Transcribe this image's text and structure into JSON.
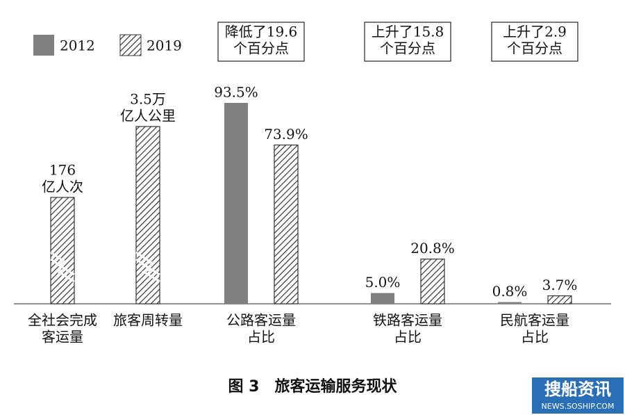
{
  "chart_data": {
    "type": "bar",
    "caption": "图 3　旅客运输服务现状",
    "categories": [
      [
        "全社会完成",
        "客运量"
      ],
      [
        "旅客周转量"
      ],
      [
        "公路客运量",
        "占比"
      ],
      [
        "铁路客运量",
        "占比"
      ],
      [
        "民航客运量",
        "占比"
      ]
    ],
    "series": [
      {
        "name": "2012",
        "color": "#7f7f7f",
        "hatch": false,
        "values": [
          null,
          null,
          93.5,
          5.0,
          0.8
        ],
        "value_labels": [
          null,
          null,
          [
            "93.5%"
          ],
          [
            "5.0%"
          ],
          [
            "0.8%"
          ]
        ]
      },
      {
        "name": "2019",
        "color": "#444444",
        "hatch": true,
        "values": [
          176,
          3.5,
          73.9,
          20.8,
          3.7
        ],
        "value_labels": [
          [
            "176",
            "亿人次"
          ],
          [
            "3.5万",
            "亿人公里"
          ],
          [
            "73.9%"
          ],
          [
            "20.8%"
          ],
          [
            "3.7%"
          ]
        ],
        "broken": [
          true,
          true,
          false,
          false,
          false
        ]
      }
    ],
    "annotations": [
      [
        "降低了19.6",
        "个百分点"
      ],
      [
        "上升了15.8",
        "个百分点"
      ],
      [
        "上升了2.9",
        "个百分点"
      ]
    ],
    "watermark": [
      "搜船资讯",
      "NEWS.SOSHIP.COM"
    ]
  }
}
